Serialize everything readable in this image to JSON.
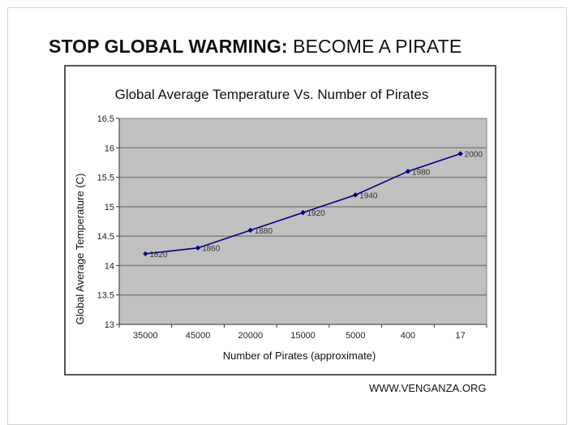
{
  "headline": {
    "bold": "STOP GLOBAL WARMING:",
    "regular": "BECOME A PIRATE"
  },
  "footer": "WWW.VENGANZA.ORG",
  "colors": {
    "plot_bg": "#c0c0c0",
    "gridline": "#808080",
    "series": "#000080"
  },
  "chart_data": {
    "type": "line",
    "title": "Global Average Temperature Vs. Number of Pirates",
    "xlabel": "Number of Pirates (approximate)",
    "ylabel": "Global Average Temperature (C)",
    "categories": [
      "35000",
      "45000",
      "20000",
      "15000",
      "5000",
      "400",
      "17"
    ],
    "ylim": [
      13,
      16.5
    ],
    "yticks": [
      "13",
      "13.5",
      "14",
      "14.5",
      "15",
      "15.5",
      "16",
      "16.5"
    ],
    "grid": true,
    "legend": "none",
    "series": [
      {
        "name": "Temperature",
        "values": [
          14.2,
          14.3,
          14.6,
          14.9,
          15.2,
          15.6,
          15.9
        ],
        "point_labels": [
          "1820",
          "1860",
          "1880",
          "1920",
          "1940",
          "1980",
          "2000"
        ]
      }
    ]
  }
}
